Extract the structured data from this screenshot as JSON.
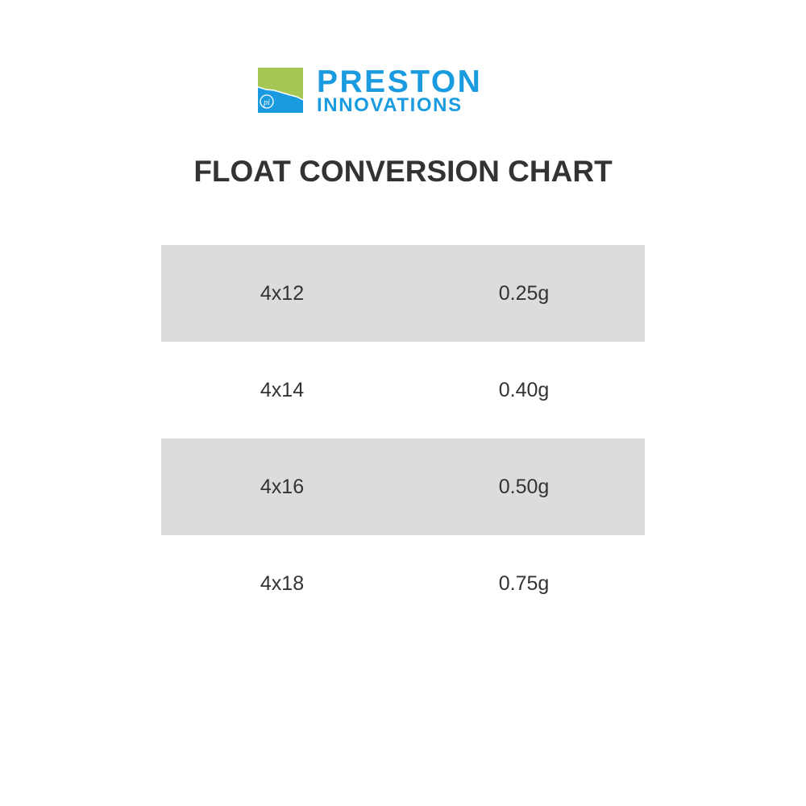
{
  "logo": {
    "line1": "PRESTON",
    "line2": "INNOVATIONS",
    "brand_blue": "#1a9be0",
    "brand_green": "#a6c653"
  },
  "title": "FLOAT CONVERSION CHART",
  "rows": [
    {
      "size": "4x12",
      "weight": "0.25g"
    },
    {
      "size": "4x14",
      "weight": "0.40g"
    },
    {
      "size": "4x16",
      "weight": "0.50g"
    },
    {
      "size": "4x18",
      "weight": "0.75g"
    }
  ],
  "colors": {
    "row_shade": "#dcdcdd",
    "text": "#333333"
  }
}
